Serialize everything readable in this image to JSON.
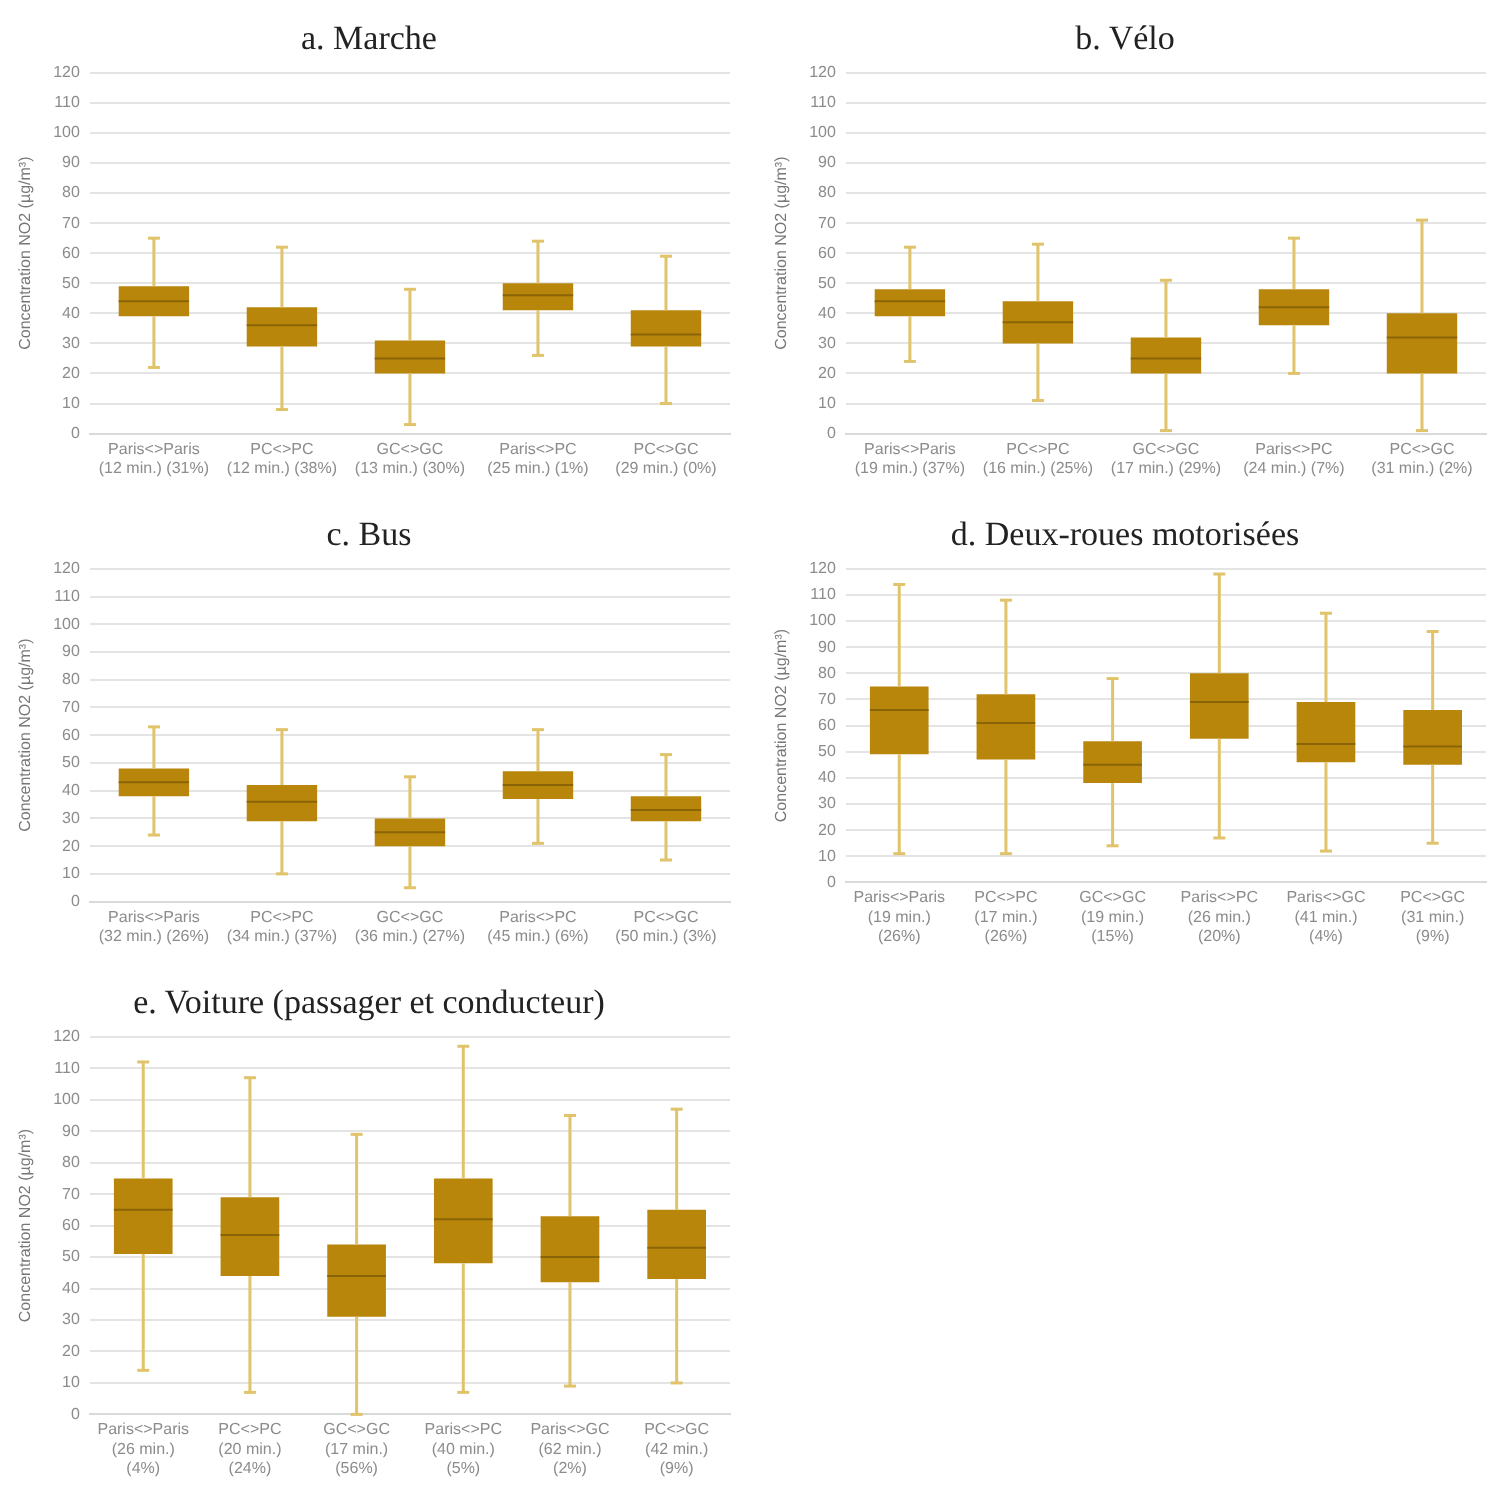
{
  "chart_data": [
    {
      "type": "box",
      "title": "a. Marche",
      "ylabel": "Concentration NO2 (µg/m³)",
      "color": "#b8860b",
      "ylim": [
        0,
        120
      ],
      "yticks": [
        0,
        10,
        20,
        30,
        40,
        50,
        60,
        70,
        80,
        90,
        100,
        110,
        120
      ],
      "grid": "y",
      "legend": false,
      "categories": [
        "Paris<>Paris\n(12 min.) (31%)",
        "PC<>PC\n(12 min.) (38%)",
        "GC<>GC\n(13 min.) (30%)",
        "Paris<>PC\n(25 min.) (1%)",
        "PC<>GC\n(29 min.) (0%)"
      ],
      "boxes": [
        {
          "low": 22,
          "q1": 39,
          "median": 44,
          "q3": 49,
          "high": 65
        },
        {
          "low": 8,
          "q1": 29,
          "median": 36,
          "q3": 42,
          "high": 62
        },
        {
          "low": 3,
          "q1": 20,
          "median": 25,
          "q3": 31,
          "high": 48
        },
        {
          "low": 26,
          "q1": 41,
          "median": 46,
          "q3": 50,
          "high": 64
        },
        {
          "low": 10,
          "q1": 29,
          "median": 33,
          "q3": 41,
          "high": 59
        }
      ]
    },
    {
      "type": "box",
      "title": "b. Vélo",
      "ylabel": "Concentration NO2 (µg/m³)",
      "color": "#b8860b",
      "ylim": [
        0,
        120
      ],
      "yticks": [
        0,
        10,
        20,
        30,
        40,
        50,
        60,
        70,
        80,
        90,
        100,
        110,
        120
      ],
      "grid": "y",
      "legend": false,
      "categories": [
        "Paris<>Paris\n(19 min.) (37%)",
        "PC<>PC\n(16 min.) (25%)",
        "GC<>GC\n(17 min.) (29%)",
        "Paris<>PC\n(24 min.) (7%)",
        "PC<>GC\n(31 min.) (2%)"
      ],
      "boxes": [
        {
          "low": 24,
          "q1": 39,
          "median": 44,
          "q3": 48,
          "high": 62
        },
        {
          "low": 11,
          "q1": 30,
          "median": 37,
          "q3": 44,
          "high": 63
        },
        {
          "low": 1,
          "q1": 20,
          "median": 25,
          "q3": 32,
          "high": 51
        },
        {
          "low": 20,
          "q1": 36,
          "median": 42,
          "q3": 48,
          "high": 65
        },
        {
          "low": 1,
          "q1": 20,
          "median": 32,
          "q3": 40,
          "high": 71
        }
      ]
    },
    {
      "type": "box",
      "title": "c. Bus",
      "ylabel": "Concentration NO2 (µg/m³)",
      "color": "#b8860b",
      "ylim": [
        0,
        120
      ],
      "yticks": [
        0,
        10,
        20,
        30,
        40,
        50,
        60,
        70,
        80,
        90,
        100,
        110,
        120
      ],
      "grid": "y",
      "legend": false,
      "categories": [
        "Paris<>Paris\n(32 min.) (26%)",
        "PC<>PC\n(34 min.) (37%)",
        "GC<>GC\n(36 min.) (27%)",
        "Paris<>PC\n(45 min.) (6%)",
        "PC<>GC\n(50 min.) (3%)"
      ],
      "boxes": [
        {
          "low": 24,
          "q1": 38,
          "median": 43,
          "q3": 48,
          "high": 63
        },
        {
          "low": 10,
          "q1": 29,
          "median": 36,
          "q3": 42,
          "high": 62
        },
        {
          "low": 5,
          "q1": 20,
          "median": 25,
          "q3": 30,
          "high": 45
        },
        {
          "low": 21,
          "q1": 37,
          "median": 42,
          "q3": 47,
          "high": 62
        },
        {
          "low": 15,
          "q1": 29,
          "median": 33,
          "q3": 38,
          "high": 53
        }
      ]
    },
    {
      "type": "box",
      "title": "d. Deux-roues motorisées",
      "ylabel": "Concentration NO2 (µg/m³)",
      "color": "#b8860b",
      "ylim": [
        0,
        120
      ],
      "yticks": [
        0,
        10,
        20,
        30,
        40,
        50,
        60,
        70,
        80,
        90,
        100,
        110,
        120
      ],
      "grid": "y",
      "legend": false,
      "categories": [
        "Paris<>Paris\n(19 min.)\n(26%)",
        "PC<>PC\n(17 min.)\n(26%)",
        "GC<>GC\n(19 min.)\n(15%)",
        "Paris<>PC\n(26 min.)\n(20%)",
        "Paris<>GC\n(41 min.)\n(4%)",
        "PC<>GC\n(31 min.)\n(9%)"
      ],
      "boxes": [
        {
          "low": 11,
          "q1": 49,
          "median": 66,
          "q3": 75,
          "high": 114
        },
        {
          "low": 11,
          "q1": 47,
          "median": 61,
          "q3": 72,
          "high": 108
        },
        {
          "low": 14,
          "q1": 38,
          "median": 45,
          "q3": 54,
          "high": 78
        },
        {
          "low": 17,
          "q1": 55,
          "median": 69,
          "q3": 80,
          "high": 118
        },
        {
          "low": 12,
          "q1": 46,
          "median": 53,
          "q3": 69,
          "high": 103
        },
        {
          "low": 15,
          "q1": 45,
          "median": 52,
          "q3": 66,
          "high": 96
        }
      ]
    },
    {
      "type": "box",
      "title": "e. Voiture (passager et conducteur)",
      "ylabel": "Concentration NO2 (µg/m³)",
      "color": "#b8860b",
      "ylim": [
        0,
        120
      ],
      "yticks": [
        0,
        10,
        20,
        30,
        40,
        50,
        60,
        70,
        80,
        90,
        100,
        110,
        120
      ],
      "grid": "y",
      "legend": false,
      "categories": [
        "Paris<>Paris\n(26 min.)\n(4%)",
        "PC<>PC\n(20 min.)\n(24%)",
        "GC<>GC\n(17 min.)\n(56%)",
        "Paris<>PC\n(40 min.)\n(5%)",
        "Paris<>GC\n(62 min.)\n(2%)",
        "PC<>GC\n(42 min.)\n(9%)"
      ],
      "boxes": [
        {
          "low": 14,
          "q1": 51,
          "median": 65,
          "q3": 75,
          "high": 112
        },
        {
          "low": 7,
          "q1": 44,
          "median": 57,
          "q3": 69,
          "high": 107
        },
        {
          "low": 0,
          "q1": 31,
          "median": 44,
          "q3": 54,
          "high": 89
        },
        {
          "low": 7,
          "q1": 48,
          "median": 62,
          "q3": 75,
          "high": 117
        },
        {
          "low": 9,
          "q1": 42,
          "median": 50,
          "q3": 63,
          "high": 95
        },
        {
          "low": 10,
          "q1": 43,
          "median": 53,
          "q3": 65,
          "high": 97
        }
      ]
    }
  ]
}
